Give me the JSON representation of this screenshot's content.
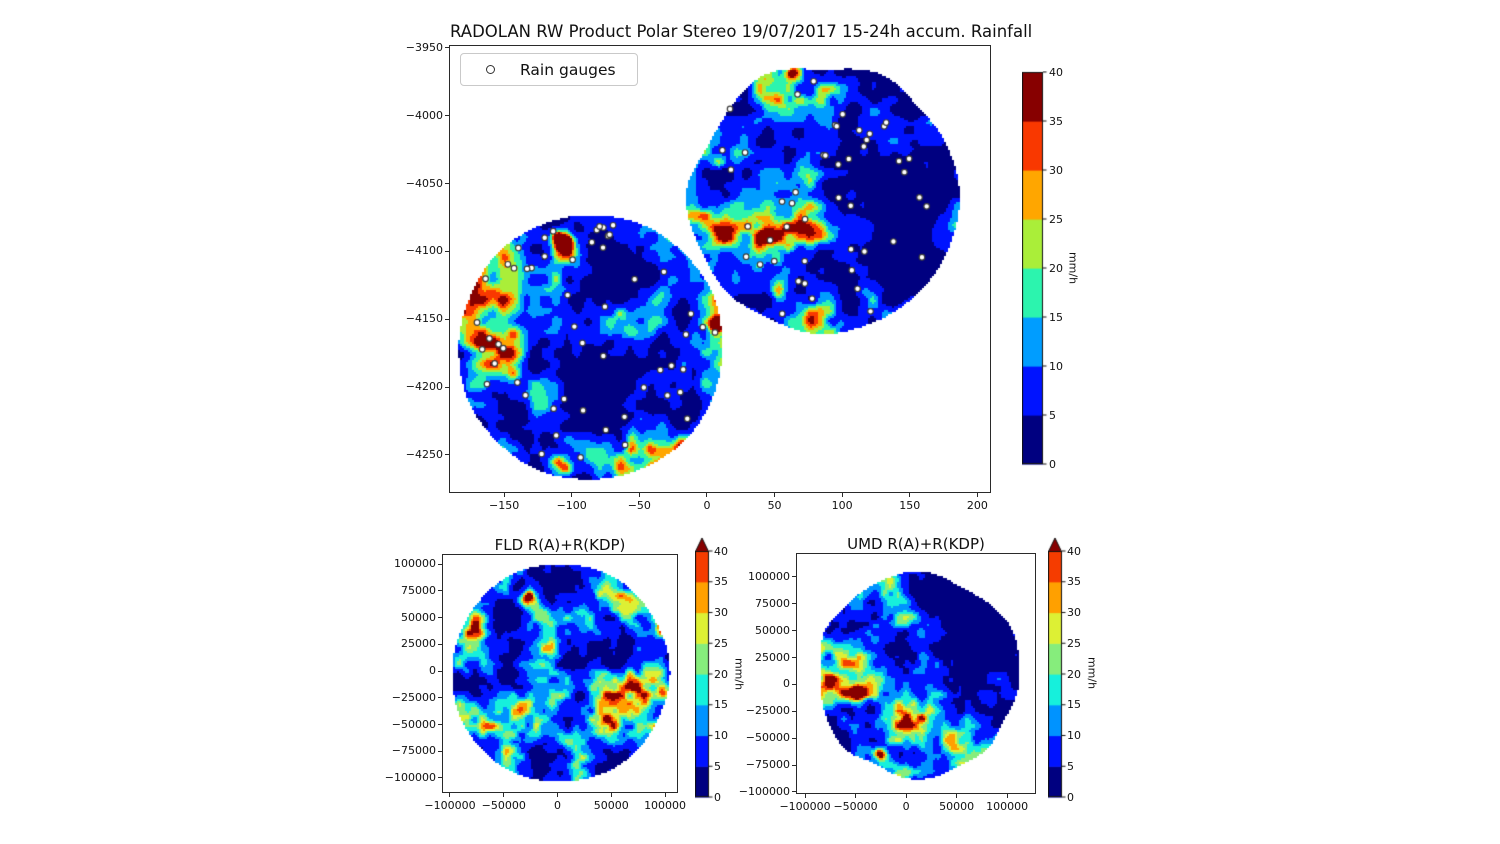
{
  "chart_data": [
    {
      "id": "main",
      "type": "heatmap",
      "title": "RADOLAN RW Product Polar Stereo 19/07/2017 15-24h accum. Rainfall",
      "legend": {
        "marker": "open-circle",
        "label": "Rain gauges"
      },
      "x_range": [
        -190,
        209.3
      ],
      "y_range": [
        -4277.3,
        -3948.6
      ],
      "x_ticks": [
        {
          "v": -150,
          "label": "−150"
        },
        {
          "v": -100,
          "label": "−100"
        },
        {
          "v": -50,
          "label": "−50"
        },
        {
          "v": 0,
          "label": "0"
        },
        {
          "v": 50,
          "label": "50"
        },
        {
          "v": 100,
          "label": "100"
        },
        {
          "v": 150,
          "label": "150"
        },
        {
          "v": 200,
          "label": "200"
        }
      ],
      "y_ticks": [
        {
          "v": -3950,
          "label": "−3950"
        },
        {
          "v": -4000,
          "label": "−4000"
        },
        {
          "v": -4050,
          "label": "−4050"
        },
        {
          "v": -4100,
          "label": "−4100"
        },
        {
          "v": -4150,
          "label": "−4150"
        },
        {
          "v": -4200,
          "label": "−4200"
        },
        {
          "v": -4250,
          "label": "−4250"
        }
      ],
      "colorbar": {
        "unit": "mm/h",
        "min": 0,
        "max": 40,
        "extend": "none",
        "over": null,
        "ticks": [
          {
            "v": 0,
            "label": "0"
          },
          {
            "v": 5,
            "label": "5"
          },
          {
            "v": 10,
            "label": "10"
          },
          {
            "v": 15,
            "label": "15"
          },
          {
            "v": 20,
            "label": "20"
          },
          {
            "v": 25,
            "label": "25"
          },
          {
            "v": 30,
            "label": "30"
          },
          {
            "v": 35,
            "label": "35"
          },
          {
            "v": 40,
            "label": "40"
          }
        ],
        "colors": [
          "#000080",
          "#0013ff",
          "#009dff",
          "#2cf4ae",
          "#aaee39",
          "#ffa600",
          "#f93800",
          "#870000"
        ]
      },
      "gauge_style": {
        "fill": "#ffffff",
        "edge": "#3a3a3a"
      },
      "radars": [
        {
          "name": "composite-southwest",
          "center": [
            -86,
            -4171
          ],
          "radius": 100,
          "seed": 11,
          "edge": 0.02,
          "bias": 0.01,
          "gauge_count": 54,
          "features": [
            [
              -105,
              -4094,
              8,
              0.48
            ],
            [
              -102,
              -4100,
              18,
              0.18
            ],
            [
              -112,
              -4088,
              5,
              0.3
            ],
            [
              -178,
              -4122,
              9,
              0.28
            ],
            [
              -158,
              -4178,
              20,
              0.16
            ],
            [
              -107,
              -4257,
              9,
              0.26
            ],
            [
              7,
              -4153,
              6,
              0.42
            ],
            [
              -80,
              -4196,
              28,
              -0.16
            ],
            [
              -58,
              -4124,
              20,
              -0.13
            ],
            [
              -137,
              -4228,
              22,
              -0.11
            ],
            [
              -30,
              -4150,
              22,
              0.09
            ],
            [
              -45,
              -4242,
              16,
              0.1
            ]
          ]
        },
        {
          "name": "composite-northeast",
          "center": [
            86,
            -4061
          ],
          "radius": 103,
          "seed": 29,
          "edge": 0.055,
          "bias": -0.01,
          "gauge_count": 48,
          "features": [
            [
              140,
              -4072,
              50,
              -0.22
            ],
            [
              115,
              -3998,
              36,
              -0.14
            ],
            [
              160,
              -4130,
              30,
              -0.12
            ],
            [
              35,
              -4098,
              36,
              0.13
            ],
            [
              47,
              -4086,
              16,
              0.14
            ],
            [
              52,
              -4128,
              6,
              0.42
            ],
            [
              62,
              -3967,
              6,
              0.38
            ],
            [
              8,
              -4034,
              6,
              0.3
            ],
            [
              30,
              -4150,
              12,
              0.12
            ]
          ]
        }
      ]
    },
    {
      "id": "fld",
      "type": "heatmap",
      "title": "FLD R(A)+R(KDP)",
      "x_range": [
        -106500,
        111100
      ],
      "y_range": [
        -113100,
        108500
      ],
      "x_ticks": [
        {
          "v": -100000,
          "label": "−100000"
        },
        {
          "v": -50000,
          "label": "−50000"
        },
        {
          "v": 0,
          "label": "0"
        },
        {
          "v": 50000,
          "label": "50000"
        },
        {
          "v": 100000,
          "label": "100000"
        }
      ],
      "y_ticks": [
        {
          "v": 100000,
          "label": "100000"
        },
        {
          "v": 75000,
          "label": "75000"
        },
        {
          "v": 50000,
          "label": "50000"
        },
        {
          "v": 25000,
          "label": "25000"
        },
        {
          "v": 0,
          "label": "0"
        },
        {
          "v": -25000,
          "label": "−25000"
        },
        {
          "v": -50000,
          "label": "−50000"
        },
        {
          "v": -75000,
          "label": "−75000"
        },
        {
          "v": -100000,
          "label": "−100000"
        }
      ],
      "colorbar": {
        "unit": "mm/h",
        "min": 0,
        "max": 40,
        "extend": "max",
        "over": "#870000",
        "ticks": [
          {
            "v": 0,
            "label": "0"
          },
          {
            "v": 5,
            "label": "5"
          },
          {
            "v": 10,
            "label": "10"
          },
          {
            "v": 15,
            "label": "15"
          },
          {
            "v": 20,
            "label": "20"
          },
          {
            "v": 25,
            "label": "25"
          },
          {
            "v": 30,
            "label": "30"
          },
          {
            "v": 35,
            "label": "35"
          },
          {
            "v": 40,
            "label": "40"
          }
        ],
        "colors": [
          "#000080",
          "#0013ff",
          "#0093ff",
          "#16f0dc",
          "#86ed7c",
          "#ddf034",
          "#ffa000",
          "#f53c00"
        ]
      },
      "radars": [
        {
          "name": "fld-radar",
          "center": [
            3000,
            -2000
          ],
          "radius": 103000,
          "seed": 3,
          "edge": 0.02,
          "bias": 0.02,
          "gauge_count": 0,
          "features": [
            [
              -28000,
              69000,
              8000,
              0.42
            ],
            [
              -24000,
              64000,
              14000,
              0.15
            ],
            [
              99000,
              44000,
              8000,
              0.26
            ],
            [
              96000,
              -20000,
              6000,
              0.2
            ],
            [
              -40000,
              3000,
              28000,
              -0.18
            ],
            [
              18000,
              -58000,
              26000,
              -0.13
            ],
            [
              -52000,
              53000,
              14000,
              -0.12
            ],
            [
              40000,
              -28000,
              30000,
              0.08
            ],
            [
              60000,
              60000,
              20000,
              0.08
            ]
          ]
        }
      ]
    },
    {
      "id": "umd",
      "type": "heatmap",
      "title": "UMD R(A)+R(KDP)",
      "x_range": [
        -108000,
        127600
      ],
      "y_range": [
        -101000,
        121400
      ],
      "x_ticks": [
        {
          "v": -100000,
          "label": "−100000"
        },
        {
          "v": -50000,
          "label": "−50000"
        },
        {
          "v": 0,
          "label": "0"
        },
        {
          "v": 50000,
          "label": "50000"
        },
        {
          "v": 100000,
          "label": "100000"
        }
      ],
      "y_ticks": [
        {
          "v": 100000,
          "label": "100000"
        },
        {
          "v": 75000,
          "label": "75000"
        },
        {
          "v": 50000,
          "label": "50000"
        },
        {
          "v": 25000,
          "label": "25000"
        },
        {
          "v": 0,
          "label": "0"
        },
        {
          "v": -25000,
          "label": "−25000"
        },
        {
          "v": -50000,
          "label": "−50000"
        },
        {
          "v": -75000,
          "label": "−75000"
        },
        {
          "v": -100000,
          "label": "−100000"
        }
      ],
      "colorbar": {
        "unit": "mm/h",
        "min": 0,
        "max": 40,
        "extend": "max",
        "over": "#870000",
        "ticks": [
          {
            "v": 0,
            "label": "0"
          },
          {
            "v": 5,
            "label": "5"
          },
          {
            "v": 10,
            "label": "10"
          },
          {
            "v": 15,
            "label": "15"
          },
          {
            "v": 20,
            "label": "20"
          },
          {
            "v": 25,
            "label": "25"
          },
          {
            "v": 30,
            "label": "30"
          },
          {
            "v": 35,
            "label": "35"
          },
          {
            "v": 40,
            "label": "40"
          }
        ],
        "colors": [
          "#000080",
          "#0013ff",
          "#0093ff",
          "#16f0dc",
          "#86ed7c",
          "#ddf034",
          "#ffa000",
          "#f53c00"
        ]
      },
      "radars": [
        {
          "name": "umd-radar",
          "center": [
            12000,
            7000
          ],
          "radius": 107000,
          "seed": 5,
          "edge": 0.065,
          "bias": -0.005,
          "gauge_count": 0,
          "features": [
            [
              60000,
              55000,
              45000,
              -0.26
            ],
            [
              88000,
              -5000,
              33000,
              -0.22
            ],
            [
              25000,
              78000,
              28000,
              -0.16
            ],
            [
              -48000,
              -7000,
              8000,
              0.42
            ],
            [
              -52000,
              -2000,
              16000,
              0.15
            ],
            [
              -27000,
              -63000,
              7000,
              0.4
            ],
            [
              -60000,
              22000,
              22000,
              0.1
            ],
            [
              15000,
              -45000,
              26000,
              0.1
            ],
            [
              -35000,
              97000,
              12000,
              0.18
            ]
          ]
        }
      ]
    }
  ]
}
